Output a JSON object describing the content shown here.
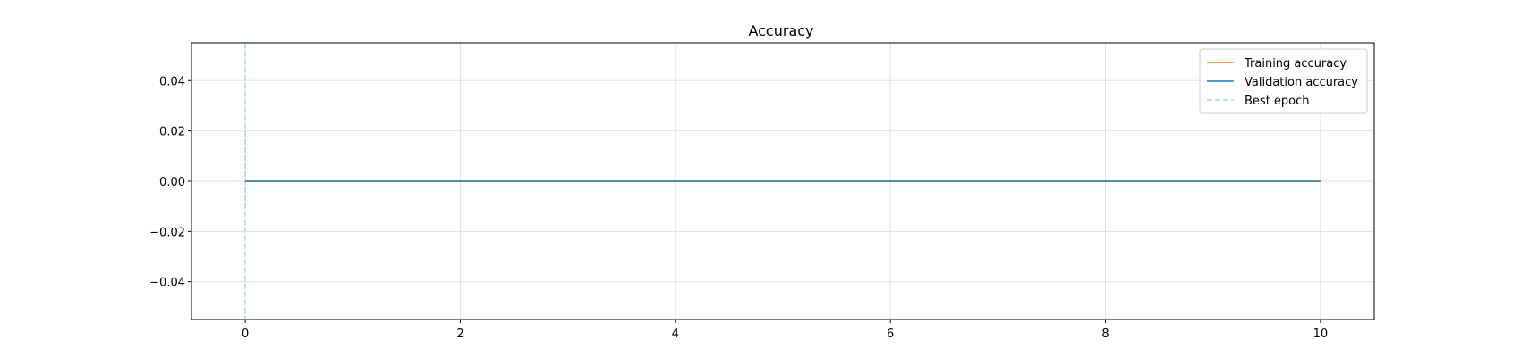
{
  "chart_data": {
    "type": "line",
    "title": "Accuracy",
    "xlabel": "",
    "ylabel": "",
    "xlim": [
      -0.5,
      10.5
    ],
    "ylim": [
      -0.055,
      0.055
    ],
    "x_ticks": [
      0,
      2,
      4,
      6,
      8,
      10
    ],
    "x_tick_labels": [
      "0",
      "2",
      "4",
      "6",
      "8",
      "10"
    ],
    "y_ticks": [
      0.04,
      0.02,
      0.0,
      -0.02,
      -0.04
    ],
    "y_tick_labels": [
      "0.04",
      "0.02",
      "0.00",
      "−0.02",
      "−0.04"
    ],
    "grid": true,
    "legend_position": "top-right",
    "series": [
      {
        "name": "Training accuracy",
        "color": "#ff7f0e",
        "style": "solid",
        "x": [
          0,
          1,
          2,
          3,
          4,
          5,
          6,
          7,
          8,
          9,
          10
        ],
        "values": [
          0,
          0,
          0,
          0,
          0,
          0,
          0,
          0,
          0,
          0,
          0
        ]
      },
      {
        "name": "Validation accuracy",
        "color": "#1f77b4",
        "style": "solid",
        "x": [
          0,
          1,
          2,
          3,
          4,
          5,
          6,
          7,
          8,
          9,
          10
        ],
        "values": [
          0,
          0,
          0,
          0,
          0,
          0,
          0,
          0,
          0,
          0,
          0
        ]
      }
    ],
    "vlines": [
      {
        "name": "Best epoch",
        "x": 0,
        "color": "#a8d8d8",
        "style": "dashed"
      }
    ]
  }
}
